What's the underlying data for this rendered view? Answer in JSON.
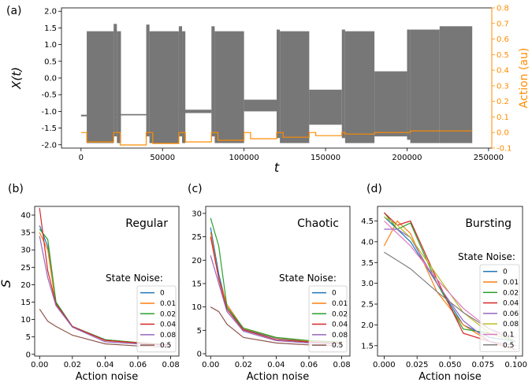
{
  "colors": {
    "signal": "#777777",
    "action": "#ff8c00",
    "axis": "#000000",
    "orange_axis": "#ff8c00"
  },
  "chart_data": [
    {
      "type": "line",
      "panel_label": "(a)",
      "xlabel": "t",
      "ylabel": "X(t)",
      "ylabel_right": "Action (au)",
      "xlim": [
        -12000,
        252000
      ],
      "ylim": [
        -2.1,
        2.1
      ],
      "ylim_right": [
        -0.1,
        0.8
      ],
      "x_ticks": [
        0,
        50000,
        100000,
        150000,
        200000,
        250000
      ],
      "y_ticks": [
        -2.0,
        -1.5,
        -1.0,
        -0.5,
        0.0,
        0.5,
        1.0,
        1.5,
        2.0
      ],
      "y_ticks_right": [
        -0.1,
        0.0,
        0.1,
        0.2,
        0.3,
        0.4,
        0.5,
        0.6,
        0.7,
        0.8
      ],
      "grid": false,
      "series": [
        {
          "kind": "signal-envelope",
          "segments": [
            {
              "x0": 0,
              "x1": 3500,
              "upper": -1.1,
              "lower": -1.15
            },
            {
              "x0": 3500,
              "x1": 20000,
              "upper": 1.4,
              "lower": -1.95
            },
            {
              "x0": 20000,
              "x1": 40000,
              "upper": -1.08,
              "lower": -1.12
            },
            {
              "x0": 20000,
              "x1": 22000,
              "upper": 1.62,
              "lower": -1.75
            },
            {
              "x0": 22000,
              "x1": 24500,
              "upper": 1.4,
              "lower": -1.95
            },
            {
              "x0": 40000,
              "x1": 42000,
              "upper": 1.6,
              "lower": -1.75
            },
            {
              "x0": 42000,
              "x1": 60000,
              "upper": 1.4,
              "lower": -1.95
            },
            {
              "x0": 60000,
              "x1": 80000,
              "upper": -0.95,
              "lower": -1.05
            },
            {
              "x0": 60000,
              "x1": 62000,
              "upper": 1.55,
              "lower": -1.75
            },
            {
              "x0": 62000,
              "x1": 64000,
              "upper": 1.4,
              "lower": -1.95
            },
            {
              "x0": 80000,
              "x1": 82000,
              "upper": 1.55,
              "lower": -1.75
            },
            {
              "x0": 82000,
              "x1": 100000,
              "upper": 1.4,
              "lower": -1.95
            },
            {
              "x0": 100000,
              "x1": 120000,
              "upper": -0.65,
              "lower": -1.0
            },
            {
              "x0": 120000,
              "x1": 122000,
              "upper": 1.45,
              "lower": -1.8
            },
            {
              "x0": 122000,
              "x1": 140000,
              "upper": 1.4,
              "lower": -1.95
            },
            {
              "x0": 140000,
              "x1": 160000,
              "upper": -0.35,
              "lower": -1.4
            },
            {
              "x0": 160000,
              "x1": 162000,
              "upper": 1.45,
              "lower": -1.8
            },
            {
              "x0": 162000,
              "x1": 180000,
              "upper": 1.4,
              "lower": -1.95
            },
            {
              "x0": 180000,
              "x1": 200000,
              "upper": 0.2,
              "lower": -1.75
            },
            {
              "x0": 200000,
              "x1": 202000,
              "upper": 1.45,
              "lower": -1.85
            },
            {
              "x0": 202000,
              "x1": 220000,
              "upper": 1.45,
              "lower": -1.95
            },
            {
              "x0": 220000,
              "x1": 240000,
              "upper": 1.55,
              "lower": -1.95
            }
          ]
        },
        {
          "kind": "action",
          "axis": "right",
          "x": [
            0,
            3500,
            3500,
            20000,
            20000,
            24000,
            24000,
            40000,
            40000,
            44000,
            44000,
            60000,
            60000,
            64000,
            64000,
            80000,
            80000,
            84000,
            84000,
            100000,
            100000,
            104000,
            104000,
            120000,
            120000,
            124000,
            124000,
            140000,
            140000,
            144000,
            144000,
            160000,
            160000,
            162000,
            162000,
            180000,
            180000,
            182000,
            182000,
            200000,
            200000,
            202000,
            202000,
            240000
          ],
          "y": [
            0.0,
            0.0,
            -0.06,
            -0.06,
            0.0,
            0.0,
            -0.08,
            -0.08,
            0.0,
            0.0,
            -0.07,
            -0.07,
            0.0,
            0.0,
            -0.06,
            -0.06,
            0.0,
            0.0,
            -0.05,
            -0.05,
            0.0,
            0.0,
            -0.04,
            -0.04,
            0.0,
            0.0,
            -0.03,
            -0.03,
            0.0,
            0.0,
            -0.02,
            -0.02,
            0.0,
            0.0,
            -0.01,
            -0.01,
            0.0,
            0.0,
            0.0,
            0.0,
            0.0,
            0.0,
            0.01,
            0.01
          ]
        }
      ]
    },
    {
      "type": "line",
      "panel_label": "(b)",
      "title": "Regular",
      "xlabel": "Action noise",
      "ylabel": "S",
      "xlim": [
        -0.003,
        0.085
      ],
      "ylim": [
        -0.5,
        42.5
      ],
      "x_ticks": [
        0.0,
        0.02,
        0.04,
        0.06,
        0.08
      ],
      "x_tick_labels": [
        "0.00",
        "0.02",
        "0.04",
        "0.06",
        "0.08"
      ],
      "y_ticks": [
        0,
        5,
        10,
        15,
        20,
        25,
        30,
        35,
        40
      ],
      "legend_title": "State Noise:",
      "legend_position": "lower-right",
      "x": [
        0.0,
        0.005,
        0.01,
        0.02,
        0.04,
        0.06,
        0.08
      ],
      "series": [
        {
          "name": "0",
          "color": "#1f77b4",
          "values": [
            37,
            31,
            15,
            8,
            4.2,
            3.3,
            2.6
          ]
        },
        {
          "name": "0.01",
          "color": "#ff7f0e",
          "values": [
            35,
            30,
            14,
            8,
            4.0,
            3.2,
            2.5
          ]
        },
        {
          "name": "0.02",
          "color": "#2ca02c",
          "values": [
            36,
            33,
            15,
            8,
            4.2,
            3.4,
            2.7
          ]
        },
        {
          "name": "0.04",
          "color": "#d62728",
          "values": [
            42,
            24,
            14.5,
            8,
            4.0,
            3.3,
            2.6
          ]
        },
        {
          "name": "0.08",
          "color": "#9467bd",
          "values": [
            34,
            22,
            14,
            7.8,
            3.6,
            3.0,
            2.4
          ]
        },
        {
          "name": "0.5",
          "color": "#8c564b",
          "values": [
            13,
            9.5,
            8,
            5.5,
            3.0,
            2.4,
            2.0
          ]
        }
      ]
    },
    {
      "type": "line",
      "panel_label": "(c)",
      "title": "Chaotic",
      "xlabel": "Action noise",
      "xlim": [
        -0.003,
        0.085
      ],
      "ylim": [
        -0.5,
        31.5
      ],
      "x_ticks": [
        0.0,
        0.02,
        0.04,
        0.06,
        0.08
      ],
      "x_tick_labels": [
        "0.00",
        "0.02",
        "0.04",
        "0.06",
        "0.08"
      ],
      "y_ticks": [
        0,
        5,
        10,
        15,
        20,
        25,
        30
      ],
      "legend_title": "State Noise:",
      "legend_position": "lower-right",
      "x": [
        0.0,
        0.005,
        0.01,
        0.02,
        0.04,
        0.06,
        0.08
      ],
      "series": [
        {
          "name": "0",
          "color": "#1f77b4",
          "values": [
            27,
            17,
            10,
            5.2,
            3.3,
            2.6,
            2.3
          ]
        },
        {
          "name": "0.01",
          "color": "#ff7f0e",
          "values": [
            26,
            16,
            10.5,
            5.4,
            3.4,
            2.7,
            2.4
          ]
        },
        {
          "name": "0.02",
          "color": "#2ca02c",
          "values": [
            29,
            23,
            10,
            5.5,
            3.5,
            2.8,
            2.5
          ]
        },
        {
          "name": "0.04",
          "color": "#d62728",
          "values": [
            25,
            16,
            9.5,
            5.1,
            3.0,
            2.5,
            2.2
          ]
        },
        {
          "name": "0.08",
          "color": "#9467bd",
          "values": [
            21,
            15,
            9,
            4.8,
            2.8,
            2.3,
            2.1
          ]
        },
        {
          "name": "0.5",
          "color": "#8c564b",
          "values": [
            10,
            9,
            6.3,
            3.5,
            2.3,
            1.9,
            1.7
          ]
        }
      ]
    },
    {
      "type": "line",
      "panel_label": "(d)",
      "title": "Bursting",
      "xlabel": "Action noise",
      "xlim": [
        -0.005,
        0.105
      ],
      "ylim": [
        1.25,
        4.85
      ],
      "x_ticks": [
        0.0,
        0.025,
        0.05,
        0.075,
        0.1
      ],
      "x_tick_labels": [
        "0.000",
        "0.025",
        "0.050",
        "0.075",
        "0.100"
      ],
      "y_ticks": [
        1.5,
        2.0,
        2.5,
        3.0,
        3.5,
        4.0,
        4.5
      ],
      "legend_title": "State Noise:",
      "legend_position": "lower-right",
      "x": [
        0.0,
        0.01,
        0.02,
        0.04,
        0.06,
        0.08,
        0.1
      ],
      "series": [
        {
          "name": "0",
          "color": "#1f77b4",
          "values": [
            4.6,
            4.3,
            4.0,
            3.0,
            2.0,
            1.7,
            1.6
          ]
        },
        {
          "name": "0.01",
          "color": "#ff7f0e",
          "values": [
            3.9,
            4.5,
            4.2,
            2.8,
            2.0,
            1.6,
            1.5
          ]
        },
        {
          "name": "0.02",
          "color": "#2ca02c",
          "values": [
            4.7,
            4.3,
            4.45,
            3.0,
            1.9,
            1.8,
            1.6
          ]
        },
        {
          "name": "0.04",
          "color": "#d62728",
          "values": [
            4.7,
            4.4,
            4.5,
            3.1,
            1.8,
            1.6,
            1.4
          ]
        },
        {
          "name": "0.06",
          "color": "#9467bd",
          "values": [
            4.3,
            4.3,
            4.1,
            3.0,
            2.1,
            1.6,
            1.5
          ]
        },
        {
          "name": "0.08",
          "color": "#bcbd22",
          "values": [
            4.6,
            4.4,
            4.1,
            3.2,
            2.3,
            1.8,
            1.6
          ]
        },
        {
          "name": "0.1",
          "color": "#e377c2",
          "values": [
            4.5,
            4.2,
            3.9,
            3.1,
            2.4,
            1.9,
            1.7
          ]
        },
        {
          "name": "0.5",
          "color": "#7f7f7f",
          "values": [
            3.75,
            3.55,
            3.35,
            2.8,
            2.3,
            1.9,
            1.6
          ]
        }
      ]
    }
  ]
}
